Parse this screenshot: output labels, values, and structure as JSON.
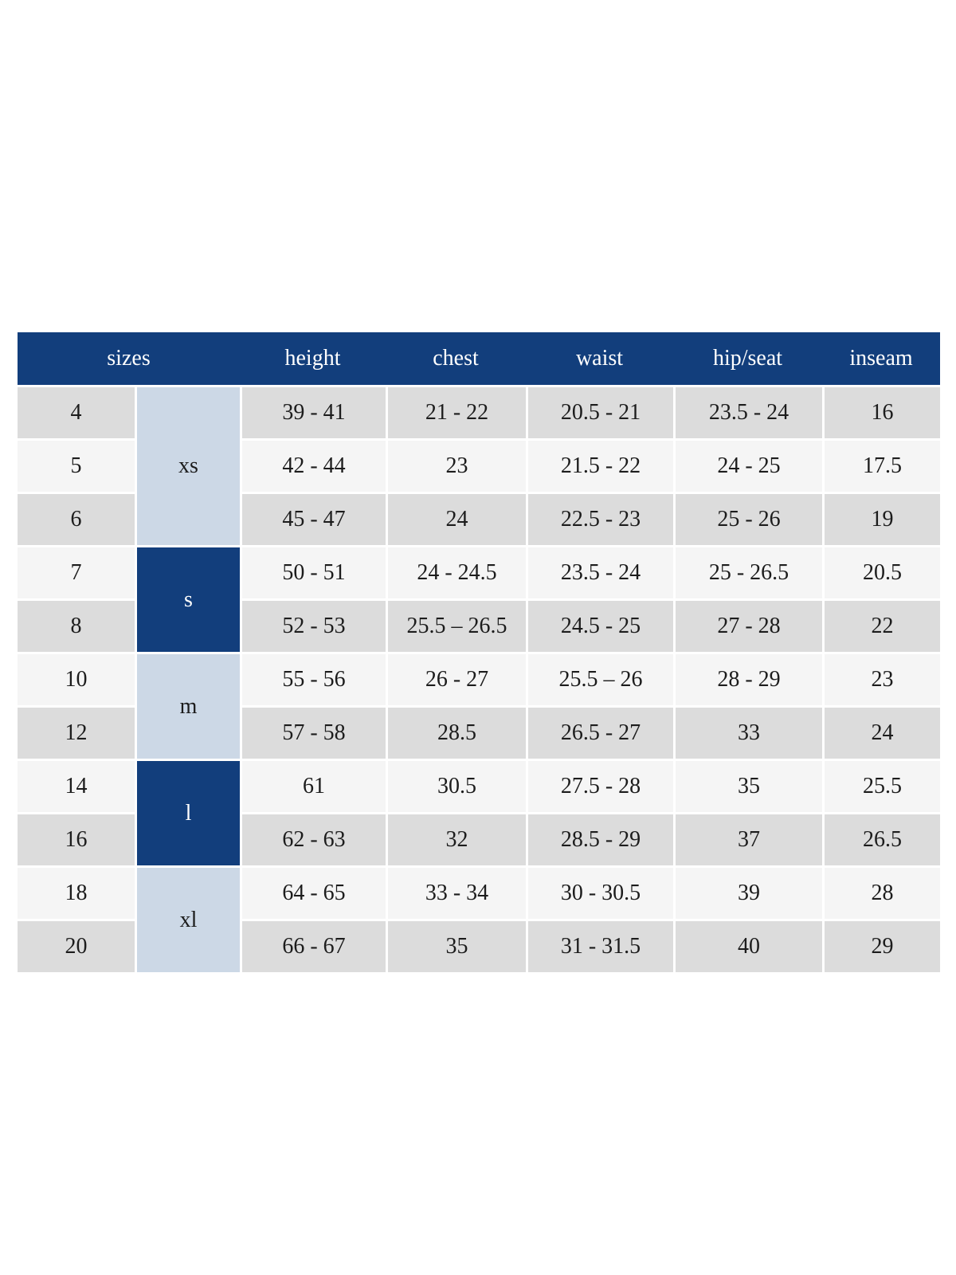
{
  "colors": {
    "background": "#ffffff",
    "header_navy": "#123e7c",
    "header_text": "#ffffff",
    "group_dark": "#123e7c",
    "group_light": "#ccd8e6",
    "row_gray": "#dcdcdc",
    "row_light": "#f5f5f5",
    "body_text": "#1c1c1c"
  },
  "header": {
    "labels": [
      "sizes",
      "height",
      "chest",
      "waist",
      "hip/seat",
      "inseam"
    ]
  },
  "groups": [
    {
      "label": "xs",
      "span": 3,
      "variant": "light"
    },
    {
      "label": "s",
      "span": 2,
      "variant": "dark"
    },
    {
      "label": "m",
      "span": 2,
      "variant": "light"
    },
    {
      "label": "l",
      "span": 2,
      "variant": "dark"
    },
    {
      "label": "xl",
      "span": 2,
      "variant": "light"
    }
  ],
  "rows": [
    {
      "size": "4",
      "height": "39 - 41",
      "chest": "21 - 22",
      "waist": "20.5 - 21",
      "hip_seat": "23.5 - 24",
      "inseam": "16"
    },
    {
      "size": "5",
      "height": "42 - 44",
      "chest": "23",
      "waist": "21.5 - 22",
      "hip_seat": "24 - 25",
      "inseam": "17.5"
    },
    {
      "size": "6",
      "height": "45 - 47",
      "chest": "24",
      "waist": "22.5 - 23",
      "hip_seat": "25 - 26",
      "inseam": "19"
    },
    {
      "size": "7",
      "height": "50 - 51",
      "chest": "24 - 24.5",
      "waist": "23.5 - 24",
      "hip_seat": "25 - 26.5",
      "inseam": "20.5"
    },
    {
      "size": "8",
      "height": "52 - 53",
      "chest": "25.5 – 26.5",
      "waist": "24.5 - 25",
      "hip_seat": "27 - 28",
      "inseam": "22"
    },
    {
      "size": "10",
      "height": "55 - 56",
      "chest": "26 - 27",
      "waist": "25.5 – 26",
      "hip_seat": "28 - 29",
      "inseam": "23"
    },
    {
      "size": "12",
      "height": "57 - 58",
      "chest": "28.5",
      "waist": "26.5 - 27",
      "hip_seat": "33",
      "inseam": "24"
    },
    {
      "size": "14",
      "height": "61",
      "chest": "30.5",
      "waist": "27.5 - 28",
      "hip_seat": "35",
      "inseam": "25.5"
    },
    {
      "size": "16",
      "height": "62 - 63",
      "chest": "32",
      "waist": "28.5 - 29",
      "hip_seat": "37",
      "inseam": "26.5"
    },
    {
      "size": "18",
      "height": "64 - 65",
      "chest": "33 - 34",
      "waist": "30 - 30.5",
      "hip_seat": "39",
      "inseam": "28"
    },
    {
      "size": "20",
      "height": "66 - 67",
      "chest": "35",
      "waist": "31 - 31.5",
      "hip_seat": "40",
      "inseam": "29"
    }
  ]
}
